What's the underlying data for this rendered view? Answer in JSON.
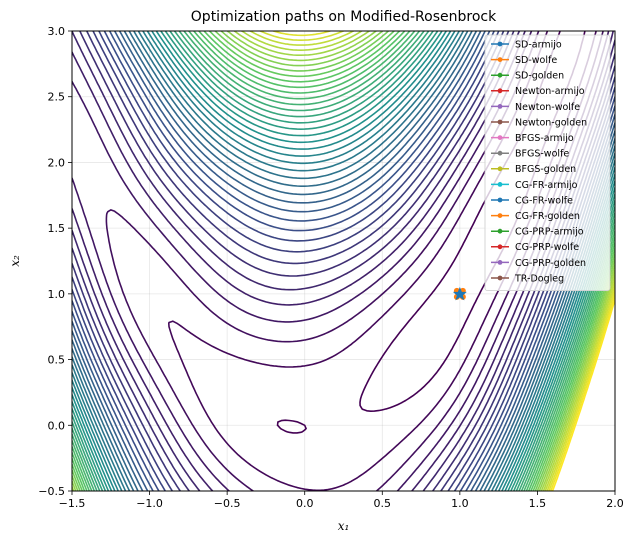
{
  "chart_data": {
    "type": "contour",
    "title": "Optimization paths on Modified-Rosenbrock",
    "xlabel": "x₁",
    "ylabel": "x₂",
    "xlim": [
      -1.5,
      2.0
    ],
    "ylim": [
      -0.5,
      3.0
    ],
    "x_ticks": [
      "−1.5",
      "−1.0",
      "−0.5",
      "0.0",
      "0.5",
      "1.0",
      "1.5",
      "2.0"
    ],
    "y_ticks": [
      "−0.5",
      "0.0",
      "0.5",
      "1.0",
      "1.5",
      "2.0",
      "2.5",
      "3.0"
    ],
    "x_tick_values": [
      -1.5,
      -1.0,
      -0.5,
      0.0,
      0.5,
      1.0,
      1.5,
      2.0
    ],
    "y_tick_values": [
      -0.5,
      0.0,
      0.5,
      1.0,
      1.5,
      2.0,
      2.5,
      3.0
    ],
    "grid": true,
    "colormap": "viridis",
    "legend_position": "top-right",
    "optimum": {
      "x": 1.0,
      "y": 1.0
    },
    "series": [
      {
        "name": "SD-armijo",
        "color": "#1f77b4",
        "points": [
          [
            1.0,
            1.0
          ]
        ]
      },
      {
        "name": "SD-wolfe",
        "color": "#ff7f0e",
        "points": [
          [
            1.0,
            1.0
          ]
        ]
      },
      {
        "name": "SD-golden",
        "color": "#2ca02c",
        "points": [
          [
            1.0,
            1.0
          ]
        ]
      },
      {
        "name": "Newton-armijo",
        "color": "#d62728",
        "points": [
          [
            1.0,
            1.0
          ]
        ]
      },
      {
        "name": "Newton-wolfe",
        "color": "#9467bd",
        "points": [
          [
            1.0,
            1.0
          ]
        ]
      },
      {
        "name": "Newton-golden",
        "color": "#8c564b",
        "points": [
          [
            1.0,
            1.0
          ]
        ]
      },
      {
        "name": "BFGS-armijo",
        "color": "#e377c2",
        "points": [
          [
            1.0,
            1.0
          ]
        ]
      },
      {
        "name": "BFGS-wolfe",
        "color": "#7f7f7f",
        "points": [
          [
            1.0,
            1.0
          ]
        ]
      },
      {
        "name": "BFGS-golden",
        "color": "#bcbd22",
        "points": [
          [
            1.0,
            1.0
          ]
        ]
      },
      {
        "name": "CG-FR-armijo",
        "color": "#17becf",
        "points": [
          [
            1.0,
            1.0
          ]
        ]
      },
      {
        "name": "CG-FR-wolfe",
        "color": "#1f77b4",
        "points": [
          [
            1.0,
            1.0
          ]
        ]
      },
      {
        "name": "CG-FR-golden",
        "color": "#ff7f0e",
        "points": [
          [
            1.0,
            1.0
          ]
        ]
      },
      {
        "name": "CG-PRP-armijo",
        "color": "#2ca02c",
        "points": [
          [
            1.0,
            1.0
          ]
        ]
      },
      {
        "name": "CG-PRP-wolfe",
        "color": "#d62728",
        "points": [
          [
            1.0,
            1.0
          ]
        ]
      },
      {
        "name": "CG-PRP-golden",
        "color": "#9467bd",
        "points": [
          [
            1.0,
            1.0
          ]
        ]
      },
      {
        "name": "TR-Dogleg",
        "color": "#8c564b",
        "points": [
          [
            1.0,
            1.0
          ]
        ]
      }
    ]
  }
}
